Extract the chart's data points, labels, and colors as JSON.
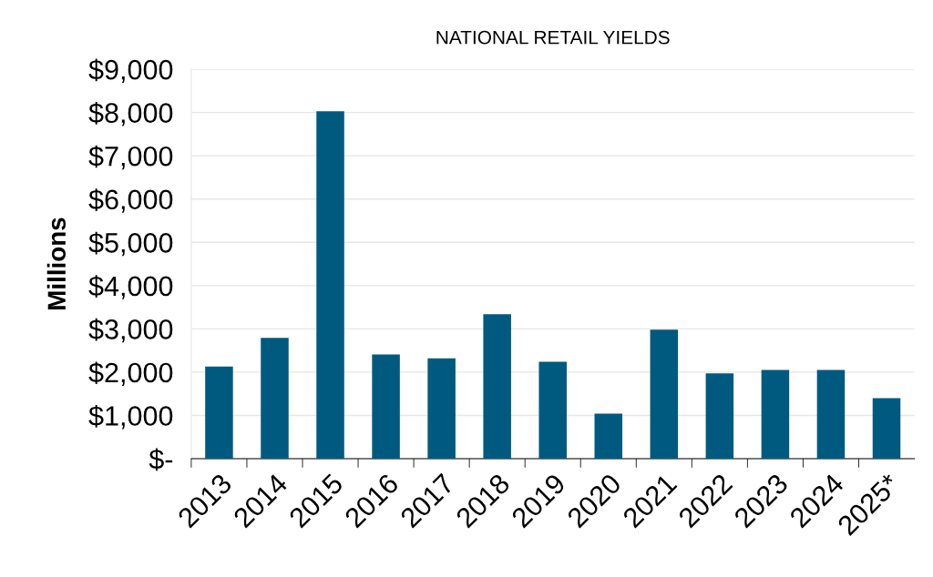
{
  "chart_data": {
    "type": "bar",
    "title": "NATIONAL RETAIL YIELDS",
    "ylabel": "Millions",
    "categories": [
      "2013",
      "2014",
      "2015",
      "2016",
      "2017",
      "2018",
      "2019",
      "2020",
      "2021",
      "2022",
      "2023",
      "2024",
      "2025*"
    ],
    "values": [
      2130,
      2790,
      8030,
      2410,
      2320,
      3340,
      2240,
      1040,
      2980,
      1970,
      2050,
      2050,
      1400
    ],
    "color": "#005a7f",
    "ylim": [
      0,
      9000
    ],
    "yticks": [
      {
        "value": 0,
        "label": "$-"
      },
      {
        "value": 1000,
        "label": "$1,000"
      },
      {
        "value": 2000,
        "label": "$2,000"
      },
      {
        "value": 3000,
        "label": "$3,000"
      },
      {
        "value": 4000,
        "label": "$4,000"
      },
      {
        "value": 5000,
        "label": "$5,000"
      },
      {
        "value": 6000,
        "label": "$6,000"
      },
      {
        "value": 7000,
        "label": "$7,000"
      },
      {
        "value": 8000,
        "label": "$8,000"
      },
      {
        "value": 9000,
        "label": "$9,000"
      }
    ],
    "grid": "y"
  }
}
